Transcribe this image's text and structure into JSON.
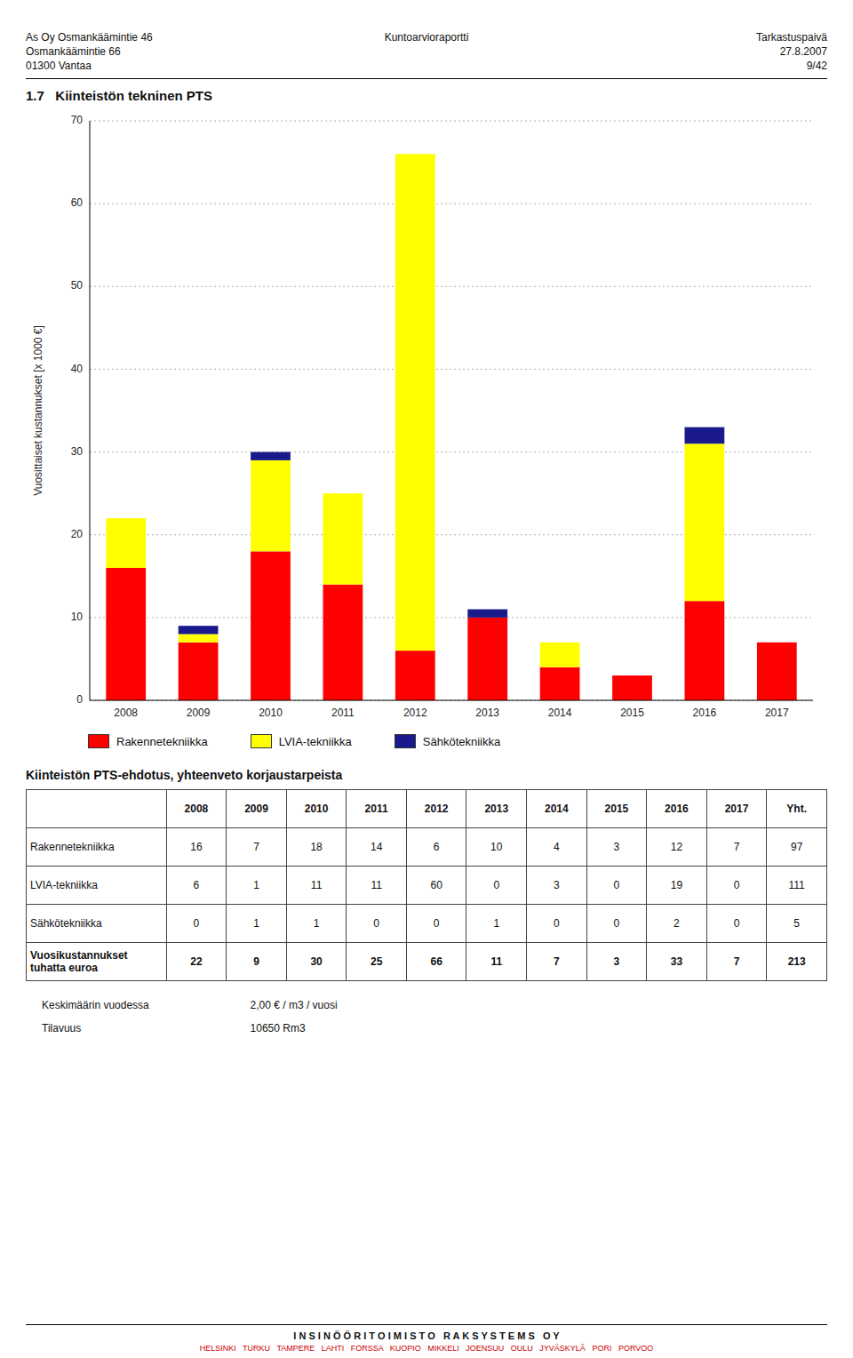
{
  "chart_data": {
    "type": "bar",
    "stacked": true,
    "categories": [
      "2008",
      "2009",
      "2010",
      "2011",
      "2012",
      "2013",
      "2014",
      "2015",
      "2016",
      "2017"
    ],
    "series": [
      {
        "name": "Rakennetekniikka",
        "color": "#FF0000",
        "values": [
          16,
          7,
          18,
          14,
          6,
          10,
          4,
          3,
          12,
          7
        ]
      },
      {
        "name": "LVIA-tekniikka",
        "color": "#FFFF00",
        "values": [
          6,
          1,
          11,
          11,
          60,
          0,
          3,
          0,
          19,
          0
        ]
      },
      {
        "name": "Sähkötekniikka",
        "color": "#1A1A8C",
        "values": [
          0,
          1,
          1,
          0,
          0,
          1,
          0,
          0,
          2,
          0
        ]
      }
    ],
    "ylabel": "Vuosittaiset kustannukset [x 1000 €]",
    "ylim": [
      0,
      70
    ],
    "yticks": [
      0,
      10,
      20,
      30,
      40,
      50,
      60,
      70
    ],
    "grid": true,
    "legend": "bottom"
  },
  "header": {
    "left": [
      "As Oy Osmankäämintie 46",
      "Osmankäämintie 66",
      "01300 Vantaa"
    ],
    "center": "Kuntoarvioraportti",
    "right": [
      "Tarkastuspaivä",
      "27.8.2007",
      "9/42"
    ]
  },
  "section_title": "1.7   Kiinteistön tekninen PTS",
  "table": {
    "title": "Kiinteistön PTS-ehdotus, yhteenveto korjaustarpeista",
    "columns": [
      "2008",
      "2009",
      "2010",
      "2011",
      "2012",
      "2013",
      "2014",
      "2015",
      "2016",
      "2017",
      "Yht."
    ],
    "rows": [
      {
        "label": "Rakennetekniikka",
        "values": [
          16,
          7,
          18,
          14,
          6,
          10,
          4,
          3,
          12,
          7,
          97
        ]
      },
      {
        "label": "LVIA-tekniikka",
        "values": [
          6,
          1,
          11,
          11,
          60,
          0,
          3,
          0,
          19,
          0,
          111
        ]
      },
      {
        "label": "Sähkötekniikka",
        "values": [
          0,
          1,
          1,
          0,
          0,
          1,
          0,
          0,
          2,
          0,
          5
        ]
      },
      {
        "label": "Vuosikustannukset\ntuhatta euroa",
        "values": [
          22,
          9,
          30,
          25,
          66,
          11,
          7,
          3,
          33,
          7,
          213
        ]
      }
    ]
  },
  "info": [
    {
      "label": "Keskimäärin vuodessa",
      "value": "2,00 € / m3 / vuosi"
    },
    {
      "label": "Tilavuus",
      "value": "10650 Rm3"
    }
  ],
  "footer": [
    "I N S I N Ö Ö R I T O I M I S T O   R A K S Y S T E M S   O Y",
    "HELSINKI   TURKU   TAMPERE   LAHTI   FORSSA   KUOPIO   MIKKELI   JOENSUU   OULU   JYVÄSKYLÄ   PORI   PORVOO"
  ]
}
